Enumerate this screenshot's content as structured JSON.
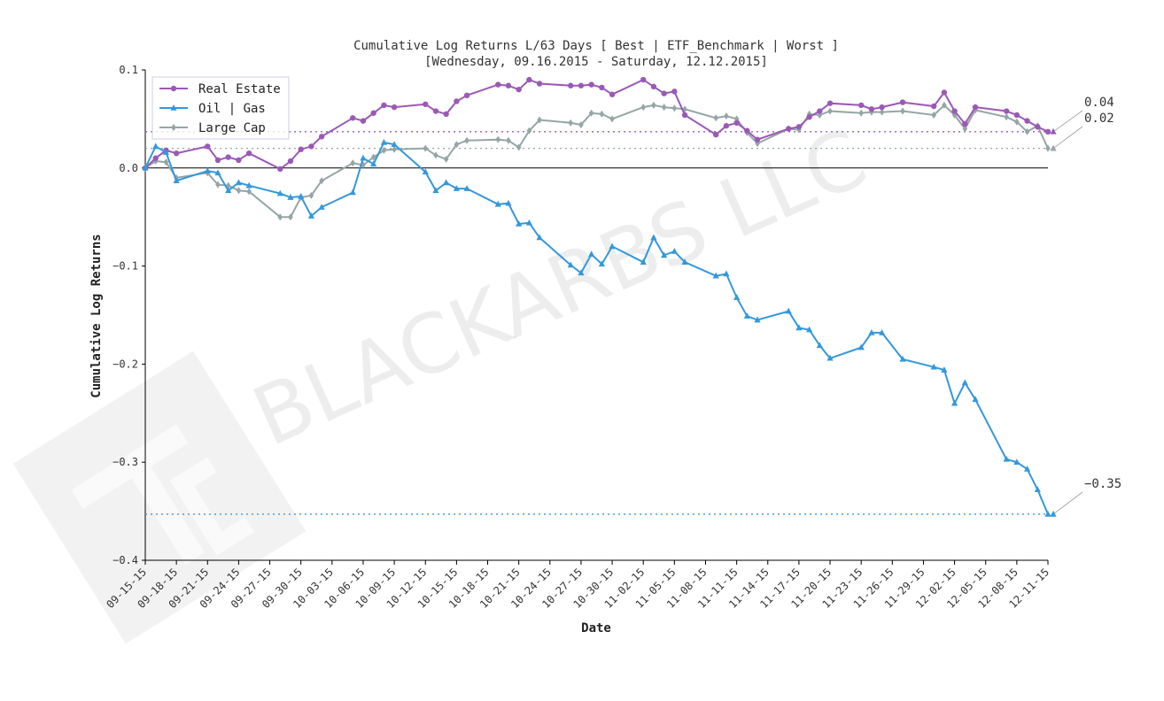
{
  "chart_data": {
    "type": "line",
    "title": "Cumulative Log Returns L/63 Days [ Best | ETF_Benchmark | Worst ]",
    "subtitle": "[Wednesday, 09.16.2015 - Saturday, 12.12.2015]",
    "xlabel": "Date",
    "ylabel": "Cumulative Log Returns",
    "ylim": [
      -0.4,
      0.1
    ],
    "yticks": [
      "0.1",
      "0.0",
      "−0.1",
      "−0.2",
      "−0.3",
      "−0.4"
    ],
    "xticks": [
      "09-15-15",
      "09-18-15",
      "09-21-15",
      "09-24-15",
      "09-27-15",
      "09-30-15",
      "10-03-15",
      "10-06-15",
      "10-09-15",
      "10-12-15",
      "10-15-15",
      "10-18-15",
      "10-21-15",
      "10-24-15",
      "10-27-15",
      "10-30-15",
      "11-02-15",
      "11-05-15",
      "11-08-15",
      "11-11-15",
      "11-14-15",
      "11-17-15",
      "11-20-15",
      "11-23-15",
      "11-26-15",
      "11-29-15",
      "12-02-15",
      "12-05-15",
      "12-08-15",
      "12-11-15"
    ],
    "grid": false,
    "legend_position": "top-left",
    "watermark": "BLACKARBS LLC",
    "series": [
      {
        "name": "Real Estate",
        "color": "#9b59b6",
        "marker": "circle",
        "final_label": "0.04",
        "final_value": 0.037,
        "points": [
          [
            "2015-09-15",
            0.0
          ],
          [
            "2015-09-16",
            0.01
          ],
          [
            "2015-09-17",
            0.018
          ],
          [
            "2015-09-18",
            0.015
          ],
          [
            "2015-09-21",
            0.022
          ],
          [
            "2015-09-22",
            0.008
          ],
          [
            "2015-09-23",
            0.011
          ],
          [
            "2015-09-24",
            0.008
          ],
          [
            "2015-09-25",
            0.015
          ],
          [
            "2015-09-28",
            -0.001
          ],
          [
            "2015-09-29",
            0.007
          ],
          [
            "2015-09-30",
            0.019
          ],
          [
            "2015-10-01",
            0.022
          ],
          [
            "2015-10-02",
            0.032
          ],
          [
            "2015-10-05",
            0.051
          ],
          [
            "2015-10-06",
            0.048
          ],
          [
            "2015-10-07",
            0.056
          ],
          [
            "2015-10-08",
            0.064
          ],
          [
            "2015-10-09",
            0.062
          ],
          [
            "2015-10-12",
            0.065
          ],
          [
            "2015-10-13",
            0.058
          ],
          [
            "2015-10-14",
            0.055
          ],
          [
            "2015-10-15",
            0.068
          ],
          [
            "2015-10-16",
            0.074
          ],
          [
            "2015-10-19",
            0.085
          ],
          [
            "2015-10-20",
            0.084
          ],
          [
            "2015-10-21",
            0.08
          ],
          [
            "2015-10-22",
            0.09
          ],
          [
            "2015-10-23",
            0.086
          ],
          [
            "2015-10-26",
            0.084
          ],
          [
            "2015-10-27",
            0.084
          ],
          [
            "2015-10-28",
            0.085
          ],
          [
            "2015-10-29",
            0.082
          ],
          [
            "2015-10-30",
            0.075
          ],
          [
            "2015-11-02",
            0.09
          ],
          [
            "2015-11-03",
            0.083
          ],
          [
            "2015-11-04",
            0.076
          ],
          [
            "2015-11-05",
            0.078
          ],
          [
            "2015-11-06",
            0.054
          ],
          [
            "2015-11-09",
            0.034
          ],
          [
            "2015-11-10",
            0.043
          ],
          [
            "2015-11-11",
            0.046
          ],
          [
            "2015-11-12",
            0.038
          ],
          [
            "2015-11-13",
            0.029
          ],
          [
            "2015-11-16",
            0.04
          ],
          [
            "2015-11-17",
            0.042
          ],
          [
            "2015-11-18",
            0.052
          ],
          [
            "2015-11-19",
            0.058
          ],
          [
            "2015-11-20",
            0.066
          ],
          [
            "2015-11-23",
            0.064
          ],
          [
            "2015-11-24",
            0.06
          ],
          [
            "2015-11-25",
            0.062
          ],
          [
            "2015-11-27",
            0.067
          ],
          [
            "2015-11-30",
            0.063
          ],
          [
            "2015-12-01",
            0.077
          ],
          [
            "2015-12-02",
            0.058
          ],
          [
            "2015-12-03",
            0.045
          ],
          [
            "2015-12-04",
            0.062
          ],
          [
            "2015-12-07",
            0.058
          ],
          [
            "2015-12-08",
            0.054
          ],
          [
            "2015-12-09",
            0.048
          ],
          [
            "2015-12-10",
            0.042
          ],
          [
            "2015-12-11",
            0.037
          ]
        ]
      },
      {
        "name": "Oil | Gas",
        "color": "#3498db",
        "marker": "triangle",
        "final_label": "−0.35",
        "final_value": -0.353,
        "points": [
          [
            "2015-09-15",
            0.0
          ],
          [
            "2015-09-16",
            0.022
          ],
          [
            "2015-09-17",
            0.016
          ],
          [
            "2015-09-18",
            -0.013
          ],
          [
            "2015-09-21",
            -0.003
          ],
          [
            "2015-09-22",
            -0.005
          ],
          [
            "2015-09-23",
            -0.023
          ],
          [
            "2015-09-24",
            -0.015
          ],
          [
            "2015-09-25",
            -0.018
          ],
          [
            "2015-09-28",
            -0.026
          ],
          [
            "2015-09-29",
            -0.03
          ],
          [
            "2015-09-30",
            -0.029
          ],
          [
            "2015-10-01",
            -0.049
          ],
          [
            "2015-10-02",
            -0.04
          ],
          [
            "2015-10-05",
            -0.025
          ],
          [
            "2015-10-06",
            0.01
          ],
          [
            "2015-10-07",
            0.004
          ],
          [
            "2015-10-08",
            0.026
          ],
          [
            "2015-10-09",
            0.024
          ],
          [
            "2015-10-12",
            -0.004
          ],
          [
            "2015-10-13",
            -0.023
          ],
          [
            "2015-10-14",
            -0.015
          ],
          [
            "2015-10-15",
            -0.021
          ],
          [
            "2015-10-16",
            -0.021
          ],
          [
            "2015-10-19",
            -0.037
          ],
          [
            "2015-10-20",
            -0.036
          ],
          [
            "2015-10-21",
            -0.057
          ],
          [
            "2015-10-22",
            -0.056
          ],
          [
            "2015-10-23",
            -0.071
          ],
          [
            "2015-10-26",
            -0.099
          ],
          [
            "2015-10-27",
            -0.107
          ],
          [
            "2015-10-28",
            -0.088
          ],
          [
            "2015-10-29",
            -0.098
          ],
          [
            "2015-10-30",
            -0.08
          ],
          [
            "2015-11-02",
            -0.096
          ],
          [
            "2015-11-03",
            -0.071
          ],
          [
            "2015-11-04",
            -0.089
          ],
          [
            "2015-11-05",
            -0.085
          ],
          [
            "2015-11-06",
            -0.096
          ],
          [
            "2015-11-09",
            -0.11
          ],
          [
            "2015-11-10",
            -0.108
          ],
          [
            "2015-11-11",
            -0.132
          ],
          [
            "2015-11-12",
            -0.151
          ],
          [
            "2015-11-13",
            -0.155
          ],
          [
            "2015-11-16",
            -0.146
          ],
          [
            "2015-11-17",
            -0.163
          ],
          [
            "2015-11-18",
            -0.165
          ],
          [
            "2015-11-19",
            -0.181
          ],
          [
            "2015-11-20",
            -0.194
          ],
          [
            "2015-11-23",
            -0.183
          ],
          [
            "2015-11-24",
            -0.168
          ],
          [
            "2015-11-25",
            -0.168
          ],
          [
            "2015-11-27",
            -0.195
          ],
          [
            "2015-11-30",
            -0.203
          ],
          [
            "2015-12-01",
            -0.206
          ],
          [
            "2015-12-02",
            -0.24
          ],
          [
            "2015-12-03",
            -0.219
          ],
          [
            "2015-12-04",
            -0.236
          ],
          [
            "2015-12-07",
            -0.297
          ],
          [
            "2015-12-08",
            -0.3
          ],
          [
            "2015-12-09",
            -0.307
          ],
          [
            "2015-12-10",
            -0.328
          ],
          [
            "2015-12-11",
            -0.353
          ]
        ]
      },
      {
        "name": "Large Cap",
        "color": "#95a5a6",
        "marker": "diamond",
        "final_label": "0.02",
        "final_value": 0.02,
        "points": [
          [
            "2015-09-15",
            0.0
          ],
          [
            "2015-09-16",
            0.007
          ],
          [
            "2015-09-17",
            0.006
          ],
          [
            "2015-09-18",
            -0.01
          ],
          [
            "2015-09-21",
            -0.005
          ],
          [
            "2015-09-22",
            -0.017
          ],
          [
            "2015-09-23",
            -0.018
          ],
          [
            "2015-09-24",
            -0.023
          ],
          [
            "2015-09-25",
            -0.024
          ],
          [
            "2015-09-28",
            -0.05
          ],
          [
            "2015-09-29",
            -0.05
          ],
          [
            "2015-09-30",
            -0.03
          ],
          [
            "2015-10-01",
            -0.028
          ],
          [
            "2015-10-02",
            -0.013
          ],
          [
            "2015-10-05",
            0.005
          ],
          [
            "2015-10-06",
            0.003
          ],
          [
            "2015-10-07",
            0.011
          ],
          [
            "2015-10-08",
            0.018
          ],
          [
            "2015-10-09",
            0.019
          ],
          [
            "2015-10-12",
            0.02
          ],
          [
            "2015-10-13",
            0.013
          ],
          [
            "2015-10-14",
            0.009
          ],
          [
            "2015-10-15",
            0.024
          ],
          [
            "2015-10-16",
            0.028
          ],
          [
            "2015-10-19",
            0.029
          ],
          [
            "2015-10-20",
            0.028
          ],
          [
            "2015-10-21",
            0.021
          ],
          [
            "2015-10-22",
            0.038
          ],
          [
            "2015-10-23",
            0.049
          ],
          [
            "2015-10-26",
            0.046
          ],
          [
            "2015-10-27",
            0.044
          ],
          [
            "2015-10-28",
            0.056
          ],
          [
            "2015-10-29",
            0.055
          ],
          [
            "2015-10-30",
            0.05
          ],
          [
            "2015-11-02",
            0.062
          ],
          [
            "2015-11-03",
            0.064
          ],
          [
            "2015-11-04",
            0.062
          ],
          [
            "2015-11-05",
            0.061
          ],
          [
            "2015-11-06",
            0.06
          ],
          [
            "2015-11-09",
            0.051
          ],
          [
            "2015-11-10",
            0.053
          ],
          [
            "2015-11-11",
            0.05
          ],
          [
            "2015-11-12",
            0.036
          ],
          [
            "2015-11-13",
            0.025
          ],
          [
            "2015-11-16",
            0.04
          ],
          [
            "2015-11-17",
            0.039
          ],
          [
            "2015-11-18",
            0.055
          ],
          [
            "2015-11-19",
            0.054
          ],
          [
            "2015-11-20",
            0.058
          ],
          [
            "2015-11-23",
            0.056
          ],
          [
            "2015-11-24",
            0.057
          ],
          [
            "2015-11-25",
            0.057
          ],
          [
            "2015-11-27",
            0.058
          ],
          [
            "2015-11-30",
            0.054
          ],
          [
            "2015-12-01",
            0.064
          ],
          [
            "2015-12-02",
            0.054
          ],
          [
            "2015-12-03",
            0.04
          ],
          [
            "2015-12-04",
            0.059
          ],
          [
            "2015-12-07",
            0.052
          ],
          [
            "2015-12-08",
            0.047
          ],
          [
            "2015-12-09",
            0.037
          ],
          [
            "2015-12-10",
            0.043
          ],
          [
            "2015-12-11",
            0.02
          ]
        ]
      }
    ]
  }
}
